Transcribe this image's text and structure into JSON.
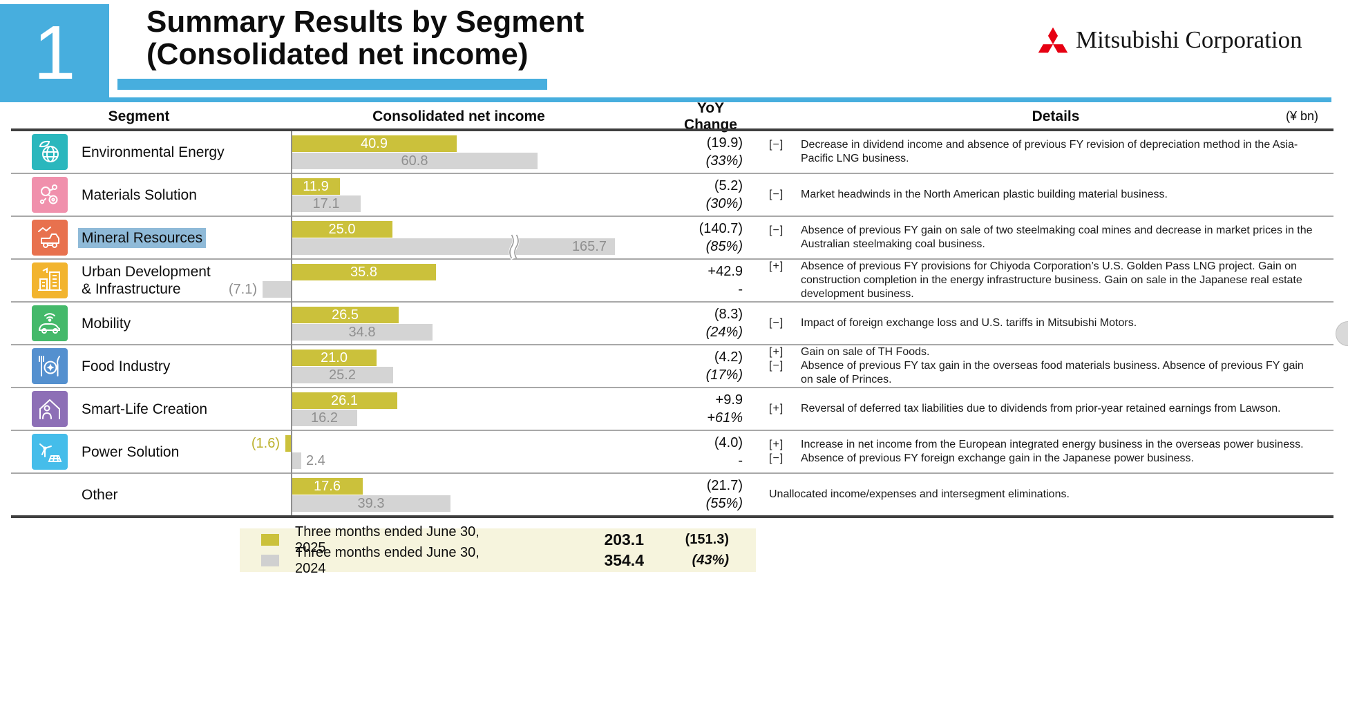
{
  "slide": {
    "page_number": "1",
    "title_line1": "Summary Results by Segment",
    "title_line2": "(Consolidated net income)",
    "logo": {
      "company": "Mitsubishi Corporation"
    },
    "unit_note": "(¥ bn)"
  },
  "colors": {
    "accent_blue": "#47aede",
    "bar_fy2025_yellow": "#cbc13b",
    "bar_fy2024_gray": "#d4d4d4",
    "selection_highlight": "#8fbad8",
    "mitsubishi_red": "#e60012",
    "legend_background": "#f6f4dd"
  },
  "table_headers": {
    "segment": "Segment",
    "income": "Consolidated net income",
    "yoy_line1": "YoY",
    "yoy_line2": "Change",
    "details": "Details"
  },
  "rows": [
    {
      "segment": "Environmental Energy",
      "icon": "globe-leaf-icon",
      "icon_color": "#2ab7bd",
      "highlighted": false,
      "bar_2025": {
        "value": 40.9,
        "label": "40.9"
      },
      "bar_2024": {
        "value": 60.8,
        "label": "60.8"
      },
      "yoy": {
        "value": "(19.9)",
        "pct": "(33%)"
      },
      "details": [
        {
          "marker": "[−]",
          "text": "Decrease in dividend income and absence of previous FY revision of depreciation method in the Asia-Pacific LNG business."
        }
      ]
    },
    {
      "segment": "Materials Solution",
      "icon": "molecule-icon",
      "icon_color": "#f090ac",
      "highlighted": false,
      "bar_2025": {
        "value": 11.9,
        "label": "11.9"
      },
      "bar_2024": {
        "value": 17.1,
        "label": "17.1"
      },
      "yoy": {
        "value": "(5.2)",
        "pct": "(30%)"
      },
      "details": [
        {
          "marker": "[−]",
          "text": "Market headwinds in the North American plastic building material business."
        }
      ]
    },
    {
      "segment": "Mineral Resources",
      "icon": "mining-truck-icon",
      "icon_color": "#e8714e",
      "highlighted": true,
      "bar_2025": {
        "value": 25.0,
        "label": "25.0"
      },
      "bar_2024": {
        "value": 165.7,
        "label": "165.7",
        "truncated": true
      },
      "yoy": {
        "value": "(140.7)",
        "pct": "(85%)"
      },
      "details": [
        {
          "marker": "[−]",
          "text": "Absence of previous FY gain on sale of two steelmaking coal mines and decrease in market prices in the Australian steelmaking coal business."
        }
      ]
    },
    {
      "segment": "Urban Development\n& Infrastructure",
      "icon": "buildings-icon",
      "icon_color": "#f2b42e",
      "highlighted": false,
      "bar_2025": {
        "value": 35.8,
        "label": "35.8"
      },
      "bar_2024": {
        "value": 7.1,
        "label": "(7.1)",
        "negative": true
      },
      "yoy": {
        "value": "+42.9",
        "pct": "-"
      },
      "details": [
        {
          "marker": "[+]",
          "text": "Absence of previous FY provisions for Chiyoda Corporation’s U.S. Golden Pass LNG project. Gain on construction completion in the energy infrastructure business. Gain on sale in the Japanese real estate development business."
        }
      ]
    },
    {
      "segment": "Mobility",
      "icon": "connected-car-icon",
      "icon_color": "#44b96a",
      "highlighted": false,
      "bar_2025": {
        "value": 26.5,
        "label": "26.5"
      },
      "bar_2024": {
        "value": 34.8,
        "label": "34.8"
      },
      "yoy": {
        "value": "(8.3)",
        "pct": "(24%)"
      },
      "details": [
        {
          "marker": "[−]",
          "text": "Impact of foreign exchange loss and U.S. tariffs in Mitsubishi Motors."
        }
      ]
    },
    {
      "segment": "Food Industry",
      "icon": "cutlery-icon",
      "icon_color": "#5490cf",
      "highlighted": false,
      "bar_2025": {
        "value": 21.0,
        "label": "21.0"
      },
      "bar_2024": {
        "value": 25.2,
        "label": "25.2"
      },
      "yoy": {
        "value": "(4.2)",
        "pct": "(17%)"
      },
      "details": [
        {
          "marker": "[+]",
          "text": "Gain on sale of TH Foods."
        },
        {
          "marker": "[−]",
          "text": "Absence of previous FY tax gain in the overseas food materials business. Absence of previous FY gain on sale of Princes."
        }
      ]
    },
    {
      "segment": "Smart-Life Creation",
      "icon": "person-house-icon",
      "icon_color": "#8d6fb6",
      "highlighted": false,
      "bar_2025": {
        "value": 26.1,
        "label": "26.1"
      },
      "bar_2024": {
        "value": 16.2,
        "label": "16.2"
      },
      "yoy": {
        "value": "+9.9",
        "pct": "+61%"
      },
      "details": [
        {
          "marker": "[+]",
          "text": "Reversal of deferred tax liabilities due to dividends from prior-year retained earnings from Lawson."
        }
      ]
    },
    {
      "segment": "Power Solution",
      "icon": "wind-solar-icon",
      "icon_color": "#45bdea",
      "highlighted": false,
      "bar_2025": {
        "value": 1.6,
        "label": "(1.6)",
        "negative": true
      },
      "bar_2024": {
        "value": 2.4,
        "label": "2.4",
        "label_outside": true
      },
      "yoy": {
        "value": "(4.0)",
        "pct": "-"
      },
      "details": [
        {
          "marker": "[+]",
          "text": "Increase in net income from the European integrated energy business in the overseas power business."
        },
        {
          "marker": "[−]",
          "text": "Absence of previous FY foreign exchange gain in the Japanese power business."
        }
      ]
    },
    {
      "segment": "Other",
      "icon": null,
      "icon_color": null,
      "highlighted": false,
      "bar_2025": {
        "value": 17.6,
        "label": "17.6"
      },
      "bar_2024": {
        "value": 39.3,
        "label": "39.3"
      },
      "yoy": {
        "value": "(21.7)",
        "pct": "(55%)"
      },
      "details": [
        {
          "marker": "",
          "text": "Unallocated income/expenses and intersegment eliminations."
        }
      ]
    }
  ],
  "legend": {
    "items": [
      {
        "swatch": "fy2025",
        "label": "Three months ended June 30, 2025",
        "total": "203.1",
        "change": "(151.3)",
        "change_italic": false
      },
      {
        "swatch": "fy2024",
        "label": "Three months ended June 30, 2024",
        "total": "354.4",
        "change": "(43%)",
        "change_italic": true
      }
    ]
  },
  "chart_data": {
    "type": "bar",
    "orientation": "horizontal",
    "title": "Summary Results by Segment (Consolidated net income)",
    "unit": "¥ bn",
    "categories": [
      "Environmental Energy",
      "Materials Solution",
      "Mineral Resources",
      "Urban Development & Infrastructure",
      "Mobility",
      "Food Industry",
      "Smart-Life Creation",
      "Power Solution",
      "Other"
    ],
    "series": [
      {
        "name": "Three months ended June 30, 2025",
        "color": "#cbc13b",
        "values": [
          40.9,
          11.9,
          25.0,
          35.8,
          26.5,
          21.0,
          26.1,
          -1.6,
          17.6
        ],
        "total": 203.1
      },
      {
        "name": "Three months ended June 30, 2024",
        "color": "#d4d4d4",
        "values": [
          60.8,
          17.1,
          165.7,
          -7.1,
          34.8,
          25.2,
          16.2,
          2.4,
          39.3
        ],
        "total": 354.4
      }
    ],
    "yoy_change": [
      -19.9,
      -5.2,
      -140.7,
      42.9,
      -8.3,
      -4.2,
      9.9,
      -4.0,
      -21.7
    ],
    "yoy_change_percent": [
      "-33%",
      "-30%",
      "-85%",
      null,
      "-24%",
      "-17%",
      "+61%",
      null,
      "-55%"
    ],
    "total_yoy_change": -151.3,
    "total_yoy_change_percent": "-43%",
    "axis_break": "FY2024 bar for Mineral Resources (165.7) is truncated with a break mark",
    "legend_position": "bottom"
  }
}
